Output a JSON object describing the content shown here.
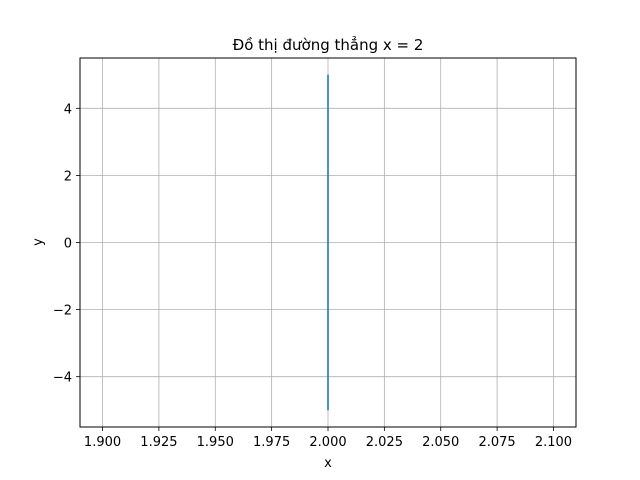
{
  "chart_data": {
    "type": "line",
    "title": "Đồ thị đường thẳng x = 2",
    "xlabel": "x",
    "ylabel": "y",
    "xlim": [
      1.89,
      2.11
    ],
    "ylim": [
      -5.5,
      5.5
    ],
    "xticks": [
      1.9,
      1.925,
      1.95,
      1.975,
      2.0,
      2.025,
      2.05,
      2.075,
      2.1
    ],
    "xtick_labels": [
      "1.900",
      "1.925",
      "1.950",
      "1.975",
      "2.000",
      "2.025",
      "2.050",
      "2.075",
      "2.100"
    ],
    "yticks": [
      -4,
      -2,
      0,
      2,
      4
    ],
    "ytick_labels": [
      "−4",
      "−2",
      "0",
      "2",
      "4"
    ],
    "grid": true,
    "series": [
      {
        "color": "#1f77b4",
        "x": [
          2,
          2
        ],
        "y": [
          -5,
          5
        ]
      }
    ]
  }
}
